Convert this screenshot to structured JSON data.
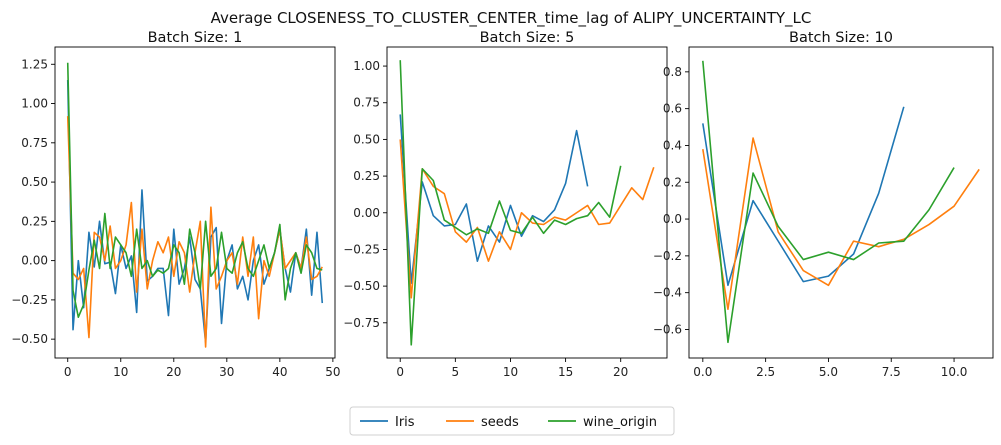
{
  "suptitle": "Average CLOSENESS_TO_CLUSTER_CENTER_time_lag of ALIPY_UNCERTAINTY_LC",
  "legend": {
    "items": [
      "Iris",
      "seeds",
      "wine_origin"
    ],
    "position": "bottom-center"
  },
  "colors": {
    "Iris": "#1f77b4",
    "seeds": "#ff7f0e",
    "wine_origin": "#2ca02c"
  },
  "chart_data": [
    {
      "type": "line",
      "title": "Batch Size: 1",
      "xlim": [
        -2.4,
        50.4
      ],
      "ylim": [
        -0.62,
        1.36
      ],
      "xticks": [
        0,
        10,
        20,
        30,
        40,
        50
      ],
      "yticks": [
        -0.5,
        -0.25,
        0.0,
        0.25,
        0.5,
        0.75,
        1.0,
        1.25
      ],
      "ytick_labels": [
        "−0.50",
        "−0.25",
        "0.00",
        "0.25",
        "0.50",
        "0.75",
        "1.00",
        "1.25"
      ],
      "series": [
        {
          "name": "Iris",
          "x0": 0,
          "values": [
            1.15,
            -0.44,
            0.0,
            -0.3,
            0.18,
            -0.04,
            0.25,
            -0.02,
            -0.01,
            -0.21,
            0.1,
            -0.05,
            0.03,
            -0.33,
            0.45,
            -0.13,
            -0.1,
            -0.05,
            -0.05,
            -0.35,
            0.2,
            -0.15,
            -0.05,
            0.15,
            -0.12,
            -0.18,
            -0.52,
            0.15,
            0.21,
            -0.4,
            0.0,
            0.1,
            -0.18,
            -0.1,
            -0.25,
            0.0,
            0.1,
            -0.15,
            -0.05,
            0.05,
            0.2,
            -0.05,
            -0.2,
            0.05,
            -0.05,
            0.2,
            -0.22,
            0.18,
            -0.27
          ]
        },
        {
          "name": "seeds",
          "x0": 0,
          "values": [
            0.92,
            -0.08,
            -0.12,
            -0.05,
            -0.49,
            0.18,
            0.15,
            0.0,
            0.22,
            -0.05,
            0.0,
            0.1,
            0.37,
            -0.2,
            0.2,
            -0.18,
            0.0,
            0.12,
            0.05,
            0.15,
            -0.1,
            0.12,
            0.05,
            -0.2,
            0.05,
            0.25,
            -0.55,
            0.34,
            -0.18,
            -0.1,
            0.0,
            0.05,
            -0.15,
            0.15,
            -0.1,
            0.15,
            -0.37,
            0.0,
            -0.1,
            0.05,
            0.2,
            -0.05,
            0.0,
            0.05,
            -0.05,
            0.15,
            -0.12,
            -0.1,
            -0.04
          ]
        },
        {
          "name": "wine_origin",
          "x0": 0,
          "values": [
            1.26,
            -0.19,
            -0.36,
            -0.28,
            -0.06,
            0.13,
            -0.05,
            0.3,
            -0.05,
            0.15,
            0.1,
            0.05,
            -0.1,
            0.2,
            -0.05,
            0.0,
            -0.1,
            -0.06,
            -0.08,
            -0.05,
            0.1,
            0.05,
            -0.15,
            0.2,
            0.05,
            -0.18,
            0.25,
            -0.1,
            -0.05,
            0.18,
            -0.05,
            -0.08,
            0.05,
            0.12,
            -0.05,
            -0.1,
            0.0,
            0.1,
            -0.05,
            0.05,
            0.23,
            -0.25,
            -0.05,
            0.05,
            -0.08,
            0.1,
            0.05,
            -0.05,
            -0.06
          ]
        }
      ]
    },
    {
      "type": "line",
      "title": "Batch Size: 5",
      "xlim": [
        -1.2,
        24.2
      ],
      "ylim": [
        -0.99,
        1.13
      ],
      "xticks": [
        0,
        5,
        10,
        15,
        20
      ],
      "yticks": [
        -0.75,
        -0.5,
        -0.25,
        0.0,
        0.25,
        0.5,
        0.75,
        1.0
      ],
      "ytick_labels": [
        "−0.75",
        "−0.50",
        "−0.25",
        "0.00",
        "0.25",
        "0.50",
        "0.75",
        "1.00"
      ],
      "series": [
        {
          "name": "Iris",
          "x0": 0,
          "values": [
            0.67,
            -0.48,
            0.21,
            -0.02,
            -0.09,
            -0.08,
            0.06,
            -0.33,
            -0.09,
            -0.2,
            0.05,
            -0.16,
            -0.02,
            -0.06,
            0.02,
            0.2,
            0.56,
            0.18
          ]
        },
        {
          "name": "seeds",
          "x0": 0,
          "values": [
            0.5,
            -0.58,
            0.3,
            0.18,
            0.13,
            -0.13,
            -0.2,
            -0.1,
            -0.33,
            -0.13,
            -0.25,
            0.0,
            -0.07,
            -0.08,
            -0.03,
            -0.05,
            0.0,
            0.05,
            -0.08,
            -0.07,
            0.05,
            0.17,
            0.09,
            0.31
          ]
        },
        {
          "name": "wine_origin",
          "x0": 0,
          "values": [
            1.04,
            -0.9,
            0.3,
            0.22,
            -0.05,
            -0.1,
            -0.15,
            -0.11,
            -0.14,
            0.08,
            -0.12,
            -0.14,
            -0.03,
            -0.14,
            -0.05,
            -0.08,
            -0.04,
            -0.02,
            0.07,
            -0.03,
            0.32
          ]
        }
      ]
    },
    {
      "type": "line",
      "title": "Batch Size: 10",
      "xlim": [
        -0.55,
        11.55
      ],
      "ylim": [
        -0.755,
        0.935
      ],
      "xticks": [
        0,
        2.5,
        5,
        7.5,
        10
      ],
      "xtick_labels": [
        "0.0",
        "2.5",
        "5.0",
        "7.5",
        "10.0"
      ],
      "yticks": [
        -0.6,
        -0.4,
        -0.2,
        0.0,
        0.2,
        0.4,
        0.6,
        0.8
      ],
      "ytick_labels": [
        "−0.6",
        "−0.4",
        "−0.2",
        "0.0",
        "0.2",
        "0.4",
        "0.6",
        "0.8"
      ],
      "series": [
        {
          "name": "Iris",
          "x0": 0,
          "values": [
            0.52,
            -0.36,
            0.1,
            -0.12,
            -0.34,
            -0.31,
            -0.19,
            0.14,
            0.61
          ]
        },
        {
          "name": "seeds",
          "x0": 0,
          "values": [
            0.38,
            -0.49,
            0.44,
            -0.07,
            -0.28,
            -0.36,
            -0.12,
            -0.15,
            -0.11,
            -0.03,
            0.07,
            0.27
          ]
        },
        {
          "name": "wine_origin",
          "x0": 0,
          "values": [
            0.86,
            -0.67,
            0.25,
            -0.04,
            -0.22,
            -0.18,
            -0.22,
            -0.13,
            -0.12,
            0.05,
            0.28
          ]
        }
      ]
    }
  ]
}
